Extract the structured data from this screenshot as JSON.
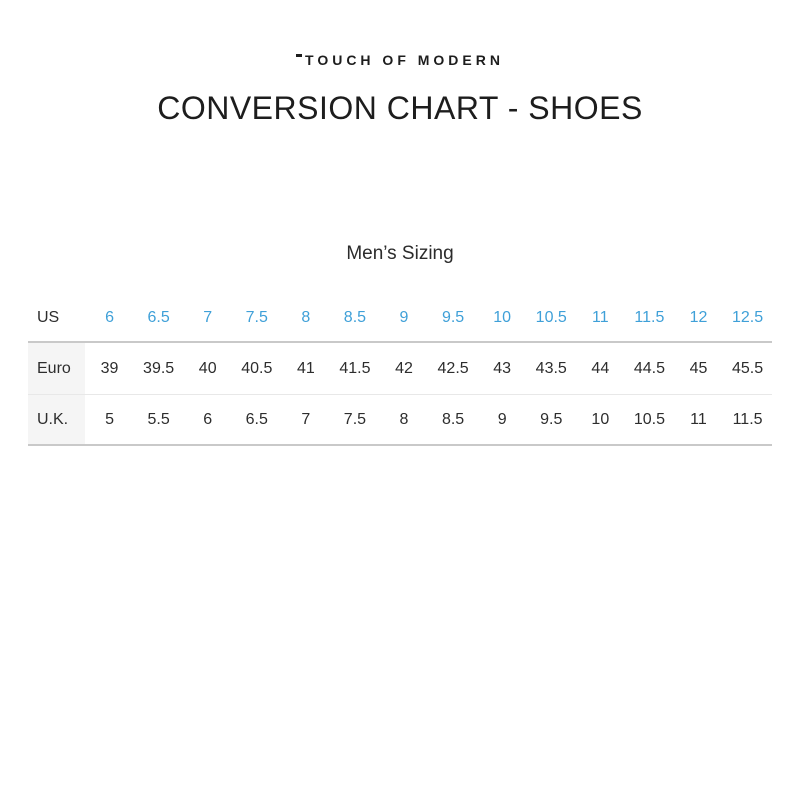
{
  "header": {
    "logo_text": "TOUCH OF MODERN",
    "title": "CONVERSION CHART - SHOES"
  },
  "chart_data": {
    "type": "table",
    "title": "Men’s Sizing",
    "rows": [
      {
        "label": "US",
        "values": [
          "6",
          "6.5",
          "7",
          "7.5",
          "8",
          "8.5",
          "9",
          "9.5",
          "10",
          "10.5",
          "11",
          "11.5",
          "12",
          "12.5"
        ]
      },
      {
        "label": "Euro",
        "values": [
          "39",
          "39.5",
          "40",
          "40.5",
          "41",
          "41.5",
          "42",
          "42.5",
          "43",
          "43.5",
          "44",
          "44.5",
          "45",
          "45.5"
        ]
      },
      {
        "label": "U.K.",
        "values": [
          "5",
          "5.5",
          "6",
          "6.5",
          "7",
          "7.5",
          "8",
          "8.5",
          "9",
          "9.5",
          "10",
          "10.5",
          "11",
          "11.5"
        ]
      }
    ]
  },
  "colors": {
    "accent_blue": "#3fa0d8",
    "text_dark": "#1d1d1d",
    "border_strong": "#c9c9c9",
    "border_light": "#e8e8e8",
    "label_cell_bg": "#f5f5f5"
  }
}
